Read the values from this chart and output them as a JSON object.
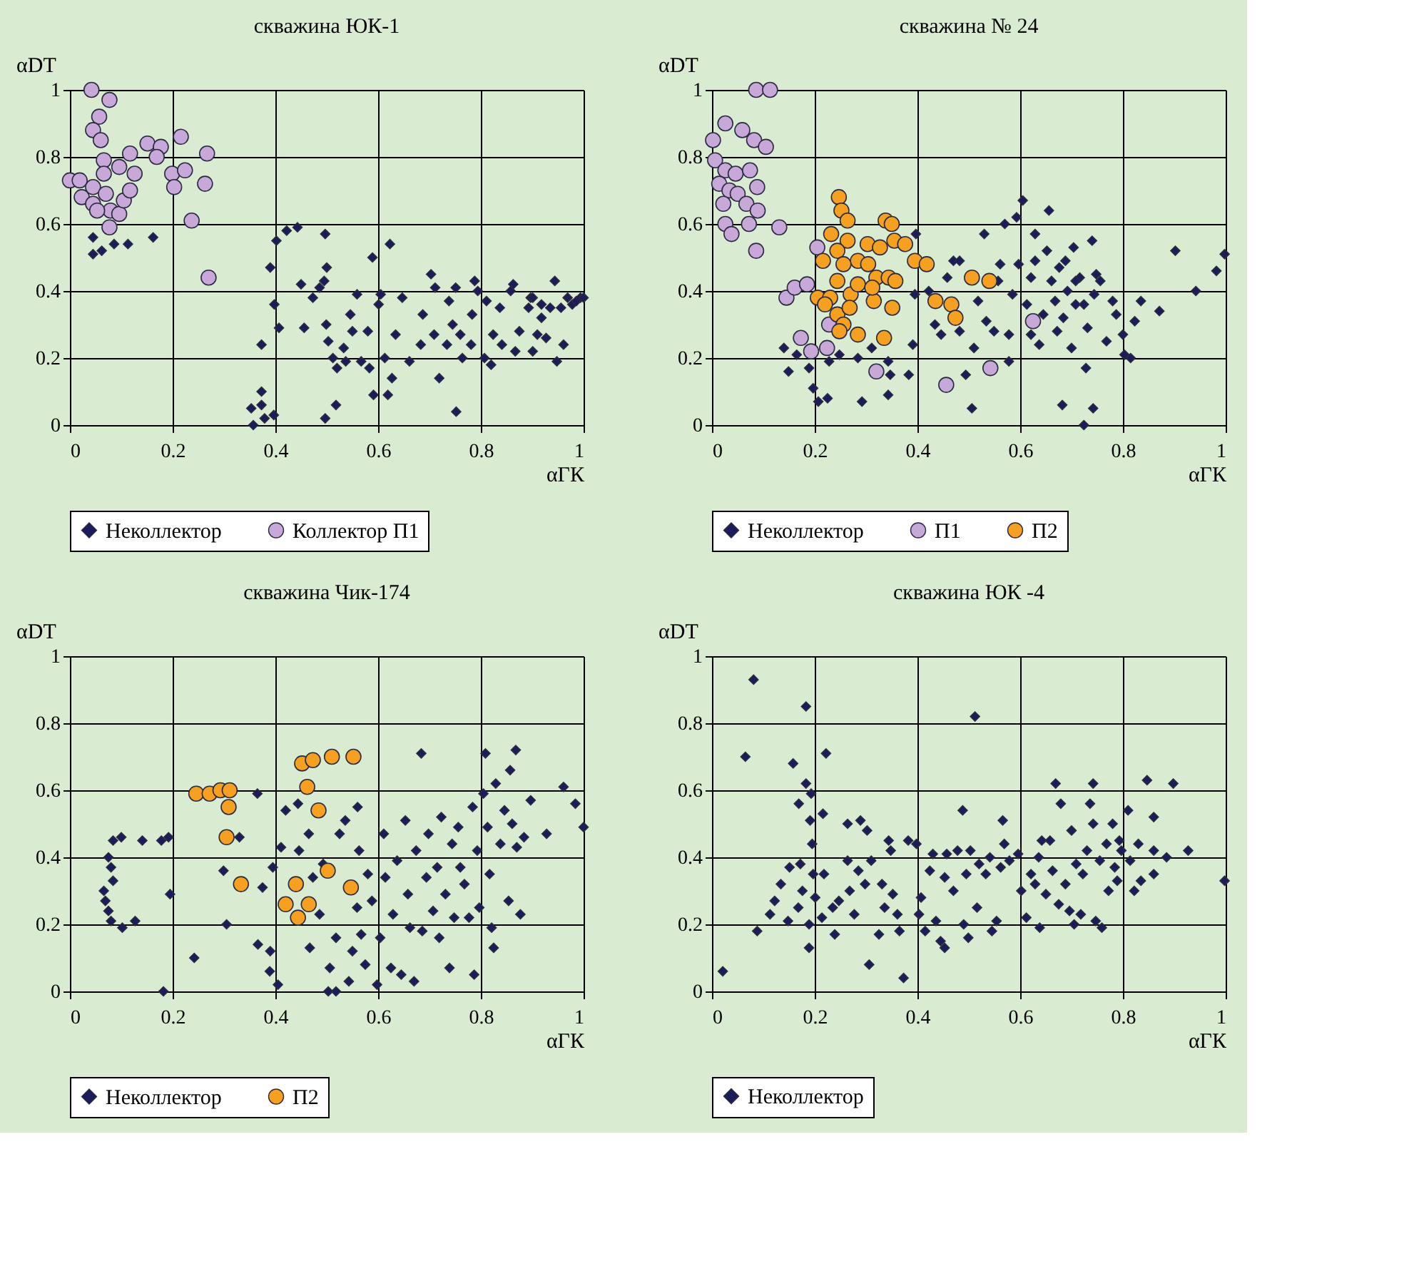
{
  "chart_data": [
    {
      "type": "scatter",
      "title": "скважина ЮК-1",
      "xlabel": "αГК",
      "ylabel": "αDT",
      "xlim": [
        0,
        1
      ],
      "ylim": [
        0,
        1
      ],
      "xticks": [
        0,
        0.2,
        0.4,
        0.6,
        0.8,
        1
      ],
      "yticks": [
        0,
        0.2,
        0.4,
        0.6,
        0.8,
        1
      ],
      "grid": true,
      "legend": "bottom",
      "series": [
        {
          "name": "Неколлектор",
          "color": "#1c1c5c",
          "marker": "diamond",
          "x": [
            0.045,
            0.045,
            0.062,
            0.086,
            0.113,
            0.162,
            0.357,
            0.353,
            0.373,
            0.373,
            0.397,
            0.379,
            0.373,
            0.39,
            0.398,
            0.407,
            0.402,
            0.422,
            0.443,
            0.45,
            0.456,
            0.473,
            0.486,
            0.497,
            0.5,
            0.495,
            0.497,
            0.518,
            0.499,
            0.503,
            0.512,
            0.52,
            0.533,
            0.546,
            0.55,
            0.537,
            0.559,
            0.567,
            0.583,
            0.589,
            0.58,
            0.591,
            0.601,
            0.605,
            0.613,
            0.619,
            0.623,
            0.627,
            0.634,
            0.647,
            0.661,
            0.683,
            0.687,
            0.703,
            0.709,
            0.719,
            0.711,
            0.734,
            0.738,
            0.745,
            0.751,
            0.752,
            0.76,
            0.764,
            0.781,
            0.783,
            0.788,
            0.794,
            0.811,
            0.807,
            0.82,
            0.824,
            0.837,
            0.841,
            0.858,
            0.863,
            0.867,
            0.875,
            0.893,
            0.897,
            0.901,
            0.91,
            0.918,
            0.927,
            0.935,
            0.944,
            0.948,
            0.956,
            0.961,
            0.969,
            0.978,
            0.986,
            0.994,
            1.0,
            0.901,
            0.918
          ],
          "values": [
            0.56,
            0.51,
            0.52,
            0.54,
            0.54,
            0.56,
            0.0,
            0.05,
            0.06,
            0.1,
            0.03,
            0.02,
            0.24,
            0.47,
            0.36,
            0.29,
            0.55,
            0.58,
            0.59,
            0.42,
            0.29,
            0.38,
            0.41,
            0.57,
            0.47,
            0.43,
            0.02,
            0.06,
            0.3,
            0.25,
            0.2,
            0.17,
            0.23,
            0.33,
            0.28,
            0.19,
            0.39,
            0.19,
            0.17,
            0.5,
            0.28,
            0.09,
            0.36,
            0.39,
            0.2,
            0.09,
            0.54,
            0.14,
            0.27,
            0.38,
            0.19,
            0.24,
            0.33,
            0.45,
            0.27,
            0.14,
            0.41,
            0.24,
            0.37,
            0.3,
            0.41,
            0.04,
            0.27,
            0.2,
            0.24,
            0.33,
            0.43,
            0.4,
            0.37,
            0.2,
            0.18,
            0.27,
            0.35,
            0.24,
            0.4,
            0.42,
            0.22,
            0.28,
            0.35,
            0.38,
            0.22,
            0.27,
            0.32,
            0.26,
            0.35,
            0.43,
            0.19,
            0.35,
            0.24,
            0.38,
            0.36,
            0.37,
            0.38,
            0.38,
            0.38,
            0.36
          ]
        },
        {
          "name": "Коллектор П1",
          "color": "#c8a8d8",
          "marker": "circle",
          "x": [
            0.042,
            0.077,
            0.057,
            0.045,
            0.06,
            0.066,
            0.0,
            0.023,
            0.045,
            0.066,
            0.07,
            0.079,
            0.077,
            0.096,
            0.105,
            0.117,
            0.126,
            0.117,
            0.151,
            0.177,
            0.169,
            0.199,
            0.203,
            0.216,
            0.224,
            0.267,
            0.263,
            0.237,
            0.27,
            0.045,
            0.053,
            0.019,
            0.096
          ],
          "values": [
            1.0,
            0.97,
            0.92,
            0.88,
            0.85,
            0.79,
            0.73,
            0.68,
            0.71,
            0.75,
            0.69,
            0.64,
            0.59,
            0.63,
            0.67,
            0.7,
            0.75,
            0.81,
            0.84,
            0.83,
            0.8,
            0.75,
            0.71,
            0.86,
            0.76,
            0.81,
            0.72,
            0.61,
            0.44,
            0.66,
            0.64,
            0.73,
            0.77
          ]
        }
      ]
    },
    {
      "type": "scatter",
      "title": "скважина № 24",
      "xlabel": "αГК",
      "ylabel": "αDT",
      "xlim": [
        0,
        1
      ],
      "ylim": [
        0,
        1
      ],
      "xticks": [
        0,
        0.2,
        0.4,
        0.6,
        0.8,
        1
      ],
      "yticks": [
        0,
        0.2,
        0.4,
        0.6,
        0.8,
        1
      ],
      "grid": true,
      "legend": "bottom",
      "series": [
        {
          "name": "Неколлектор",
          "color": "#1c1c5c",
          "marker": "diamond",
          "x": [
            0.14,
            0.149,
            0.165,
            0.189,
            0.197,
            0.207,
            0.225,
            0.228,
            0.248,
            0.284,
            0.292,
            0.311,
            0.343,
            0.347,
            0.343,
            0.383,
            0.391,
            0.397,
            0.395,
            0.422,
            0.434,
            0.446,
            0.458,
            0.47,
            0.482,
            0.482,
            0.494,
            0.506,
            0.51,
            0.518,
            0.53,
            0.534,
            0.549,
            0.557,
            0.561,
            0.57,
            0.578,
            0.578,
            0.585,
            0.593,
            0.597,
            0.605,
            0.613,
            0.621,
            0.629,
            0.637,
            0.645,
            0.652,
            0.656,
            0.661,
            0.668,
            0.672,
            0.676,
            0.682,
            0.688,
            0.692,
            0.7,
            0.704,
            0.708,
            0.716,
            0.724,
            0.728,
            0.731,
            0.74,
            0.742,
            0.744,
            0.756,
            0.768,
            0.78,
            0.787,
            0.8,
            0.803,
            0.815,
            0.823,
            0.835,
            0.871,
            0.902,
            0.942,
            0.982,
            0.998,
            0.629,
            0.708,
            0.684,
            0.621,
            0.748,
            0.724
          ],
          "values": [
            0.23,
            0.16,
            0.21,
            0.17,
            0.11,
            0.07,
            0.08,
            0.19,
            0.21,
            0.2,
            0.07,
            0.23,
            0.09,
            0.15,
            0.19,
            0.15,
            0.24,
            0.57,
            0.39,
            0.4,
            0.3,
            0.27,
            0.44,
            0.49,
            0.49,
            0.28,
            0.15,
            0.05,
            0.23,
            0.37,
            0.57,
            0.31,
            0.28,
            0.43,
            0.48,
            0.6,
            0.19,
            0.27,
            0.39,
            0.62,
            0.48,
            0.67,
            0.36,
            0.44,
            0.49,
            0.24,
            0.33,
            0.52,
            0.64,
            0.43,
            0.37,
            0.28,
            0.47,
            0.06,
            0.49,
            0.4,
            0.23,
            0.53,
            0.36,
            0.44,
            0.0,
            0.17,
            0.29,
            0.55,
            0.05,
            0.39,
            0.43,
            0.25,
            0.37,
            0.33,
            0.27,
            0.21,
            0.2,
            0.31,
            0.37,
            0.34,
            0.52,
            0.4,
            0.46,
            0.51,
            0.57,
            0.43,
            0.32,
            0.27,
            0.45,
            0.36
          ]
        },
        {
          "name": "П1",
          "color": "#c8a8d8",
          "marker": "circle",
          "x": [
            0.086,
            0.113,
            0.026,
            0.059,
            0.082,
            0.105,
            0.002,
            0.006,
            0.026,
            0.046,
            0.074,
            0.088,
            0.014,
            0.034,
            0.022,
            0.05,
            0.067,
            0.089,
            0.026,
            0.038,
            0.072,
            0.086,
            0.131,
            0.145,
            0.161,
            0.185,
            0.205,
            0.173,
            0.193,
            0.224,
            0.228,
            0.32,
            0.456,
            0.542,
            0.625
          ],
          "values": [
            1.0,
            1.0,
            0.9,
            0.88,
            0.85,
            0.83,
            0.85,
            0.79,
            0.76,
            0.75,
            0.76,
            0.71,
            0.72,
            0.7,
            0.66,
            0.69,
            0.66,
            0.64,
            0.6,
            0.57,
            0.6,
            0.52,
            0.59,
            0.38,
            0.41,
            0.42,
            0.53,
            0.26,
            0.22,
            0.23,
            0.3,
            0.16,
            0.12,
            0.17,
            0.31
          ]
        },
        {
          "name": "П2",
          "color": "#f5a020",
          "marker": "circle",
          "x": [
            0.247,
            0.252,
            0.264,
            0.232,
            0.216,
            0.264,
            0.244,
            0.284,
            0.303,
            0.327,
            0.338,
            0.35,
            0.355,
            0.376,
            0.395,
            0.418,
            0.206,
            0.23,
            0.244,
            0.27,
            0.292,
            0.315,
            0.32,
            0.344,
            0.357,
            0.22,
            0.244,
            0.256,
            0.248,
            0.284,
            0.335,
            0.351,
            0.304,
            0.284,
            0.435,
            0.466,
            0.474,
            0.506,
            0.54,
            0.256,
            0.312,
            0.268
          ],
          "values": [
            0.68,
            0.64,
            0.61,
            0.57,
            0.49,
            0.55,
            0.52,
            0.49,
            0.54,
            0.53,
            0.61,
            0.6,
            0.55,
            0.54,
            0.49,
            0.48,
            0.38,
            0.38,
            0.43,
            0.39,
            null,
            0.37,
            0.44,
            0.44,
            0.43,
            0.36,
            0.33,
            0.3,
            0.28,
            0.27,
            0.26,
            0.35,
            0.48,
            0.42,
            0.37,
            0.36,
            0.32,
            0.44,
            0.43,
            0.48,
            0.41,
            0.35
          ]
        }
      ]
    },
    {
      "type": "scatter",
      "title": "скважина  Чик-174",
      "xlabel": "αГК",
      "ylabel": "αDT",
      "xlim": [
        0,
        1
      ],
      "ylim": [
        0,
        1
      ],
      "xticks": [
        0,
        0.2,
        0.4,
        0.6,
        0.8,
        1
      ],
      "yticks": [
        0,
        0.2,
        0.4,
        0.6,
        0.8,
        1
      ],
      "grid": true,
      "legend": "bottom",
      "series": [
        {
          "name": "Неколлектор",
          "color": "#1c1c5c",
          "marker": "diamond",
          "x": [
            0.084,
            0.1,
            0.075,
            0.08,
            0.084,
            0.066,
            0.069,
            0.075,
            0.08,
            0.102,
            0.127,
            0.141,
            0.178,
            0.192,
            0.195,
            0.182,
            0.242,
            0.299,
            0.305,
            0.33,
            0.365,
            0.366,
            0.375,
            0.389,
            0.39,
            0.395,
            0.405,
            0.411,
            0.42,
            0.444,
            0.446,
            0.465,
            0.467,
            0.473,
            0.486,
            0.493,
            0.506,
            0.503,
            0.518,
            0.518,
            0.525,
            0.536,
            0.543,
            0.55,
            0.559,
            0.56,
            0.563,
            0.567,
            0.575,
            0.58,
            0.588,
            0.598,
            0.604,
            0.611,
            0.614,
            0.625,
            0.629,
            0.637,
            0.645,
            0.653,
            0.658,
            0.662,
            0.67,
            0.674,
            0.684,
            0.686,
            0.694,
            0.698,
            0.707,
            0.715,
            0.719,
            0.723,
            0.731,
            0.739,
            0.744,
            0.748,
            0.756,
            0.76,
            0.768,
            0.777,
            0.784,
            0.787,
            0.793,
            0.797,
            0.805,
            0.809,
            0.813,
            0.817,
            0.821,
            0.825,
            0.829,
            0.838,
            0.846,
            0.854,
            0.857,
            0.861,
            0.868,
            0.87,
            0.877,
            0.884,
            0.897,
            0.928,
            0.961,
            0.984,
            1.0
          ],
          "values": [
            0.45,
            0.46,
            0.4,
            0.37,
            0.33,
            0.3,
            0.27,
            0.24,
            0.21,
            0.19,
            0.21,
            0.45,
            0.45,
            0.46,
            0.29,
            0.0,
            0.1,
            0.36,
            0.2,
            0.46,
            0.59,
            0.14,
            0.31,
            0.06,
            0.12,
            0.37,
            0.02,
            0.43,
            0.54,
            0.56,
            0.42,
            0.47,
            0.13,
            0.34,
            0.23,
            0.38,
            0.07,
            0.0,
            0.0,
            0.16,
            0.47,
            0.51,
            0.03,
            0.12,
            0.25,
            0.55,
            0.42,
            0.17,
            0.08,
            0.35,
            0.27,
            0.02,
            0.16,
            0.47,
            0.34,
            0.07,
            0.23,
            0.39,
            0.05,
            0.51,
            0.29,
            0.19,
            0.03,
            0.42,
            0.71,
            0.18,
            0.34,
            0.47,
            0.24,
            0.37,
            0.16,
            0.52,
            0.29,
            0.07,
            0.44,
            0.22,
            0.49,
            0.37,
            0.32,
            0.22,
            0.55,
            0.05,
            0.42,
            0.25,
            0.59,
            0.71,
            0.49,
            0.35,
            0.19,
            0.13,
            0.62,
            0.44,
            0.54,
            0.27,
            0.66,
            0.5,
            0.72,
            0.43,
            0.23,
            0.46,
            0.57,
            0.47,
            0.61,
            0.56,
            0.49
          ]
        },
        {
          "name": "П2",
          "color": "#f5a020",
          "marker": "circle",
          "x": [
            0.246,
            0.272,
            0.293,
            0.311,
            0.309,
            0.305,
            0.333,
            0.444,
            0.452,
            0.473,
            0.51,
            0.552,
            0.462,
            0.484,
            0.44,
            0.42,
            0.444,
            0.465,
            0.502,
            0.547
          ],
          "values": [
            0.59,
            0.59,
            0.6,
            0.6,
            0.55,
            0.46,
            0.32,
            null,
            0.68,
            0.69,
            0.7,
            0.7,
            0.61,
            0.54,
            0.32,
            0.26,
            0.22,
            0.26,
            0.36,
            0.31
          ]
        }
      ]
    },
    {
      "type": "scatter",
      "title": "скважина ЮК -4",
      "xlabel": "αГК",
      "ylabel": "αDT",
      "xlim": [
        0,
        1
      ],
      "ylim": [
        0,
        1
      ],
      "xticks": [
        0,
        0.2,
        0.4,
        0.6,
        0.8,
        1
      ],
      "yticks": [
        0,
        0.2,
        0.4,
        0.6,
        0.8,
        1
      ],
      "grid": true,
      "legend": "bottom",
      "series": [
        {
          "name": "Неколлектор",
          "color": "#1c1c5c",
          "marker": "diamond",
          "x": [
            0.021,
            0.081,
            0.065,
            0.088,
            0.113,
            0.122,
            0.134,
            0.148,
            0.151,
            0.158,
            0.168,
            0.169,
            0.172,
            0.176,
            0.183,
            0.183,
            0.189,
            0.189,
            0.191,
            0.193,
            0.195,
            0.197,
            0.201,
            0.214,
            0.216,
            0.218,
            0.222,
            0.235,
            0.239,
            0.247,
            0.264,
            0.264,
            0.268,
            0.277,
            0.285,
            0.289,
            0.298,
            0.302,
            0.306,
            0.31,
            0.325,
            0.331,
            0.336,
            0.344,
            0.348,
            0.352,
            0.361,
            0.365,
            0.373,
            0.382,
            0.398,
            0.403,
            0.407,
            0.415,
            0.424,
            0.43,
            0.436,
            0.445,
            0.453,
            0.453,
            0.457,
            0.47,
            0.478,
            0.488,
            0.49,
            0.495,
            0.499,
            0.503,
            0.512,
            0.516,
            0.52,
            0.533,
            0.541,
            0.545,
            0.554,
            0.562,
            0.566,
            0.569,
            0.579,
            0.596,
            0.602,
            0.612,
            0.621,
            0.629,
            0.636,
            0.638,
            0.642,
            0.65,
            0.658,
            0.663,
            0.669,
            0.675,
            0.679,
            0.688,
            0.696,
            0.7,
            0.705,
            0.709,
            0.718,
            0.722,
            0.73,
            0.736,
            0.742,
            0.742,
            0.747,
            0.755,
            0.759,
            0.768,
            0.772,
            0.78,
            0.784,
            0.789,
            0.793,
            0.797,
            0.81,
            0.814,
            0.822,
            0.83,
            0.835,
            0.847,
            0.86,
            0.86,
            0.86,
            0.885,
            0.898,
            0.927,
            0.998
          ],
          "values": [
            0.06,
            0.93,
            0.7,
            0.18,
            0.23,
            0.27,
            0.32,
            0.21,
            0.37,
            0.68,
            0.25,
            0.56,
            0.38,
            0.3,
            0.85,
            0.62,
            0.13,
            0.2,
            0.51,
            0.59,
            0.44,
            0.35,
            0.28,
            0.22,
            0.53,
            0.35,
            0.71,
            0.25,
            0.17,
            0.27,
            0.5,
            0.39,
            0.3,
            0.23,
            0.36,
            0.51,
            0.32,
            0.48,
            0.08,
            0.39,
            0.17,
            0.32,
            0.25,
            0.45,
            0.42,
            0.29,
            0.23,
            0.18,
            0.04,
            0.45,
            0.44,
            0.23,
            0.28,
            0.18,
            0.36,
            0.41,
            0.21,
            0.15,
            0.13,
            0.34,
            0.41,
            0.3,
            0.42,
            0.54,
            0.2,
            0.35,
            0.16,
            0.42,
            0.82,
            0.25,
            0.38,
            0.35,
            0.4,
            0.18,
            0.21,
            0.37,
            0.51,
            0.44,
            0.39,
            0.41,
            0.3,
            0.22,
            0.35,
            0.32,
            0.4,
            0.19,
            0.45,
            0.29,
            0.45,
            0.36,
            0.62,
            0.26,
            0.56,
            0.32,
            0.24,
            0.48,
            0.2,
            0.38,
            0.23,
            0.35,
            0.42,
            0.56,
            0.62,
            0.5,
            0.21,
            0.39,
            0.19,
            0.44,
            0.3,
            0.5,
            0.37,
            0.33,
            0.45,
            0.42,
            0.54,
            0.39,
            0.3,
            0.44,
            0.33,
            0.63,
            0.52,
            0.42,
            0.35,
            0.4,
            0.62,
            0.42,
            0.33
          ]
        }
      ]
    }
  ]
}
